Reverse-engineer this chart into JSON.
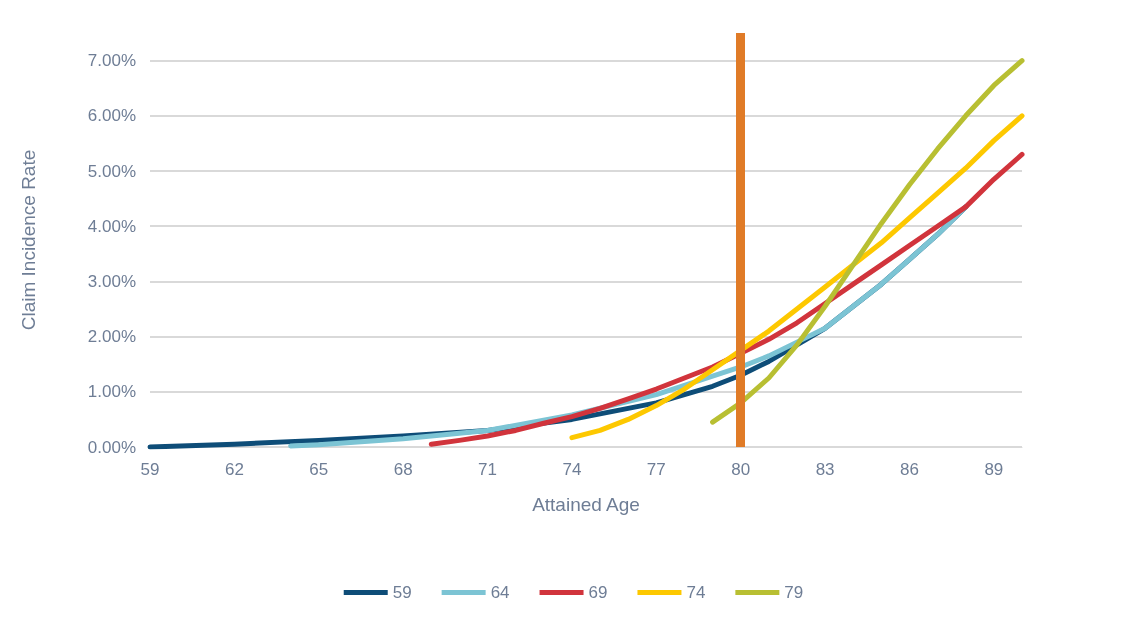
{
  "chart_data": {
    "type": "line",
    "xlabel": "Attained Age",
    "ylabel": "Claim Incidence Rate",
    "xlim": [
      59,
      90
    ],
    "xticks": [
      59,
      62,
      65,
      68,
      71,
      74,
      77,
      80,
      83,
      86,
      89
    ],
    "ylim": [
      0,
      7.5
    ],
    "yticks": [
      {
        "value": 0,
        "label": "0.00%"
      },
      {
        "value": 1,
        "label": "1.00%"
      },
      {
        "value": 2,
        "label": "2.00%"
      },
      {
        "value": 3,
        "label": "3.00%"
      },
      {
        "value": 4,
        "label": "4.00%"
      },
      {
        "value": 5,
        "label": "5.00%"
      },
      {
        "value": 6,
        "label": "6.00%"
      },
      {
        "value": 7,
        "label": "7.00%"
      }
    ],
    "grid": "y",
    "legend": "bottom",
    "marker": "none",
    "line_style": "solid",
    "ref_lines": [
      {
        "axis": "x",
        "value": 80,
        "color": "#e07b27"
      }
    ],
    "series": [
      {
        "name": "59",
        "color": "#0e4d78",
        "x": [
          59,
          62,
          65,
          68,
          71,
          74,
          77,
          78,
          79,
          80,
          81,
          82,
          83,
          84,
          85,
          86,
          87,
          88
        ],
        "values": [
          0.0,
          0.05,
          0.12,
          0.2,
          0.3,
          0.5,
          0.8,
          0.95,
          1.1,
          1.3,
          1.55,
          1.85,
          2.15,
          2.55,
          2.95,
          3.4,
          3.85,
          4.35
        ]
      },
      {
        "name": "64",
        "color": "#7cc4d4",
        "x": [
          64,
          65,
          68,
          71,
          74,
          77,
          80,
          81,
          82,
          83,
          84,
          85,
          86,
          87,
          88
        ],
        "values": [
          0.02,
          0.04,
          0.15,
          0.3,
          0.58,
          0.95,
          1.45,
          1.65,
          1.9,
          2.15,
          2.55,
          2.95,
          3.4,
          3.85,
          4.35
        ]
      },
      {
        "name": "69",
        "color": "#d1343c",
        "x": [
          69,
          70,
          71,
          72,
          73,
          74,
          75,
          76,
          77,
          78,
          79,
          80,
          81,
          82,
          83,
          84,
          85,
          86,
          87,
          88,
          89,
          90
        ],
        "values": [
          0.05,
          0.12,
          0.2,
          0.3,
          0.43,
          0.55,
          0.7,
          0.87,
          1.05,
          1.25,
          1.45,
          1.7,
          1.95,
          2.25,
          2.6,
          2.95,
          3.3,
          3.65,
          4.0,
          4.35,
          4.85,
          5.3
        ]
      },
      {
        "name": "74",
        "color": "#fdc800",
        "x": [
          74,
          75,
          76,
          77,
          78,
          79,
          80,
          81,
          82,
          83,
          84,
          85,
          86,
          87,
          88,
          89,
          90
        ],
        "values": [
          0.17,
          0.3,
          0.5,
          0.75,
          1.05,
          1.4,
          1.75,
          2.1,
          2.5,
          2.9,
          3.3,
          3.7,
          4.15,
          4.6,
          5.05,
          5.55,
          6.0
        ]
      },
      {
        "name": "79",
        "color": "#b8bf32",
        "x": [
          79,
          80,
          81,
          82,
          83,
          84,
          85,
          86,
          87,
          88,
          89,
          90
        ],
        "values": [
          0.45,
          0.8,
          1.25,
          1.85,
          2.55,
          3.3,
          4.05,
          4.75,
          5.4,
          6.0,
          6.55,
          7.0
        ]
      }
    ]
  }
}
